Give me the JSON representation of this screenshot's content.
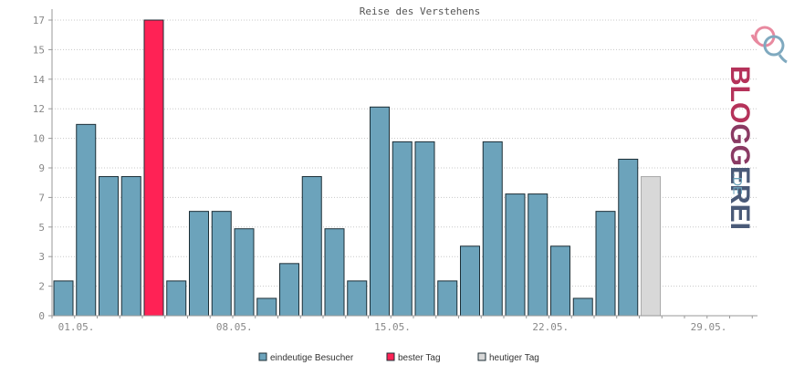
{
  "chart_data": {
    "type": "bar",
    "title": "Reise des Verstehens",
    "xlabel": "",
    "ylabel": "",
    "ylim": [
      0,
      17
    ],
    "y_ticks": [
      "0",
      "2",
      "3",
      "5",
      "7",
      "9",
      "10",
      "12",
      "14",
      "15",
      "17"
    ],
    "x_tick_labels": [
      {
        "label": "01.05.",
        "index": 0
      },
      {
        "label": "08.05.",
        "index": 7
      },
      {
        "label": "15.05.",
        "index": 14
      },
      {
        "label": "22.05.",
        "index": 21
      },
      {
        "label": "29.05.",
        "index": 28
      }
    ],
    "total_days": 31,
    "grid": true,
    "legend_position": "bottom",
    "values": [
      2,
      11,
      8,
      8,
      17,
      2,
      6,
      6,
      5,
      1,
      3,
      8,
      5,
      2,
      12,
      10,
      10,
      2,
      4,
      10,
      7,
      7,
      4,
      1,
      6,
      9,
      8
    ],
    "bar_kinds": [
      "n",
      "n",
      "n",
      "n",
      "b",
      "n",
      "n",
      "n",
      "n",
      "n",
      "n",
      "n",
      "n",
      "n",
      "n",
      "n",
      "n",
      "n",
      "n",
      "n",
      "n",
      "n",
      "n",
      "n",
      "n",
      "n",
      "t"
    ],
    "legend": [
      {
        "label": "eindeutige Besucher",
        "color": "#6ca3bb"
      },
      {
        "label": "bester Tag",
        "color": "#ff2255"
      },
      {
        "label": "heutiger Tag",
        "color": "#d8d8d8"
      }
    ],
    "colors": {
      "normal": "#6ca3bb",
      "best": "#ff2255",
      "today": "#d8d8d8"
    }
  },
  "logo": {
    "text_main": "BLOGGEREI",
    "text_suffix": ".DE",
    "colors": {
      "blo": "#b5325a",
      "gg": "#8a3a63",
      "erei": "#4a5a78",
      "de": "#6ca3bb"
    }
  }
}
